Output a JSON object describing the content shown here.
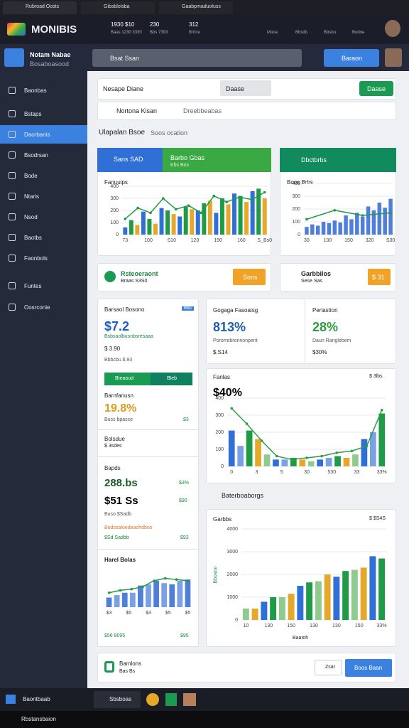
{
  "tabs": [
    "Rubroad Oosts",
    "Gibsblolsba",
    "Gaabpmaduoluss"
  ],
  "header": {
    "logo": "MONIBIS",
    "stats": [
      [
        "1930 $10",
        "Baas 1230 3330"
      ],
      [
        "230",
        "Bbs 7393"
      ],
      [
        "312",
        "Br0ce"
      ]
    ],
    "icons": [
      "Mooa",
      "Bbsdb",
      "Bbsbu",
      "Bodoe"
    ]
  },
  "app": {
    "name": "Notam Nabae",
    "subtitle": "Bosaboasood",
    "search": "Bsat Ssan",
    "button": "Baraon"
  },
  "sidebar": {
    "items": [
      "Baonbas",
      "Bstaps",
      "Daorbanis",
      "Bsodrsan",
      "Bode",
      "Ntaris",
      "Nsod",
      "Baotbs",
      "Faonbols",
      "Funtes",
      "Oosrconie"
    ],
    "active": 2
  },
  "toolbar": {
    "title": "Nesape Diane",
    "chip": "Daase",
    "button": "Daase"
  },
  "search": {
    "query": "Nortona Kisan",
    "hint": "Dreebbeabas"
  },
  "section": {
    "title": "Ulapalan Bsoe",
    "suffix": "Soos ocation"
  },
  "card1": {
    "tab1": "Sans SAD",
    "tab2": "Barbo Gbas",
    "tab2sub": "Kbs Bos",
    "label": "Fanuuips",
    "chart": {
      "type": "bar",
      "ylim": [
        0,
        400
      ],
      "yticks": [
        0,
        100,
        200,
        300,
        400
      ],
      "values": [
        60,
        120,
        80,
        190,
        130,
        90,
        220,
        200,
        170,
        150,
        230,
        210,
        200,
        260,
        280,
        180,
        300,
        250,
        340,
        320,
        270,
        360,
        380,
        300
      ],
      "colors": [
        "#2f6fd6",
        "#1f9a46",
        "#e4a92a"
      ],
      "line": [
        130,
        220,
        180,
        300,
        210,
        240,
        180,
        320,
        270,
        310,
        290,
        350
      ],
      "line_color": "#1f9a46",
      "xlabels": [
        "73",
        "100",
        "S10",
        "120",
        "190",
        "160",
        "S_Bs0"
      ]
    }
  },
  "card2": {
    "title": "Dbctbrbs",
    "label": "Boos Brbs",
    "chart": {
      "type": "bar",
      "ylim": [
        0,
        400
      ],
      "yticks": [
        0,
        100,
        200,
        300,
        400
      ],
      "values": [
        60,
        80,
        70,
        100,
        90,
        110,
        95,
        150,
        120,
        170,
        140,
        220,
        190,
        250,
        210,
        280
      ],
      "colors": [
        "#4f7fd8"
      ],
      "line": [
        120,
        190,
        150,
        170
      ],
      "line_color": "#1f9a46",
      "xlabels": [
        "30",
        "100",
        "150",
        "320",
        "S30"
      ]
    }
  },
  "action1": {
    "title": "Rsteoeraont",
    "sub": "Braas S3S0",
    "button": "Sons"
  },
  "action2": {
    "title": "Garbbilos",
    "sub": "Sese Sas",
    "button": "$ 31"
  },
  "left": {
    "l1": {
      "title": "Barsaol Bosono",
      "badge": "Bbo",
      "big": "$7.2",
      "sub": "Bsbsaolbusnbsresaaa",
      "small": "$ 3.90",
      "small2": "Bbbcbu $.93",
      "bar": "Bteaoud",
      "bar2": "Bleb"
    },
    "l2": {
      "title": "Barnfanusn",
      "big": "19.8%",
      "sub": "Buss bpasce",
      "val": "$3"
    },
    "l3": {
      "title": "Bolsdue",
      "sub": "$ 3sdes"
    },
    "l4": {
      "title": "Bapds",
      "big": "288.bs",
      "pct": "$3%",
      "big2": "$51 Ss",
      "v2": "$90",
      "sub": "Buso $Sadb",
      "orange": "Bodssaloedeaohdbos",
      "green": "$Sd Sadbb",
      "v3": "$93"
    },
    "l5": {
      "title": "Harel Bolas",
      "footer": "$56 8095",
      "val": "$95",
      "chart": {
        "type": "bar",
        "ylim": [
          0,
          160
        ],
        "values": [
          40,
          50,
          60,
          60,
          90,
          95,
          110,
          100,
          95,
          110,
          115
        ],
        "colors": [
          "#4f7fd8",
          "#7aa0e6"
        ],
        "line": [
          60,
          70,
          75,
          85,
          110,
          120,
          115,
          110
        ],
        "line_color": "#1f9a46",
        "xlabels": [
          "$3",
          "$5",
          "$3",
          "$5",
          "$5"
        ]
      }
    }
  },
  "stats": [
    {
      "title": "Gogaga Fasoaisg",
      "big": "813%",
      "sub": "Pororrebronnonpent",
      "small": "$.S14"
    },
    {
      "title": "Perlastion",
      "big": "28%",
      "sub": "Daun Ranglebem",
      "small": "$30%"
    }
  ],
  "chart3": {
    "title": "Fanlas",
    "big": "$40%",
    "legend": "$ 3lbs",
    "chart": {
      "type": "bar",
      "ylim": [
        0,
        400
      ],
      "yticks": [
        0,
        100,
        200,
        300,
        400
      ],
      "values": [
        210,
        120,
        210,
        160,
        70,
        40,
        40,
        50,
        40,
        30,
        40,
        50,
        60,
        50,
        70,
        160,
        200,
        310
      ],
      "colors": [
        "#2f6fd6",
        "#7aa0e6",
        "#1f9a46",
        "#e4a92a",
        "#8fcb8f"
      ],
      "line": [
        340,
        250,
        150,
        60,
        40,
        50,
        60,
        80,
        90,
        120,
        330
      ],
      "line_color": "#2e9d46",
      "xlabels": [
        "0",
        "3",
        "5",
        "30",
        "530",
        "33",
        "33%"
      ]
    }
  },
  "row_title": "Baterboaborgs",
  "chart4": {
    "title": "Garbbs",
    "legend": "$ $S4S",
    "ylabel": "Bbostor",
    "xlabel": "Baatoh",
    "chart": {
      "type": "bar",
      "ylim": [
        0,
        4000
      ],
      "yticks": [
        0,
        1000,
        2000,
        3000,
        4000
      ],
      "values": [
        500,
        500,
        800,
        1000,
        1000,
        1150,
        1500,
        1650,
        1700,
        2000,
        1900,
        2150,
        2200,
        2300,
        2800,
        2700
      ],
      "colors": [
        "#8fcb8f",
        "#e4a92a",
        "#2f6fd6",
        "#1f9a46"
      ],
      "xlabels": [
        "10",
        "130",
        "150",
        "130",
        "130",
        "150",
        "33%"
      ]
    }
  },
  "bottom": {
    "title": "Bamlons",
    "sub": "Bas Bs",
    "edit": "Zsar",
    "button": "Boos Baan"
  },
  "taskbar": {
    "start": "Baontbaab",
    "search": "Sbsboas",
    "status": "Rbstansbaion"
  }
}
